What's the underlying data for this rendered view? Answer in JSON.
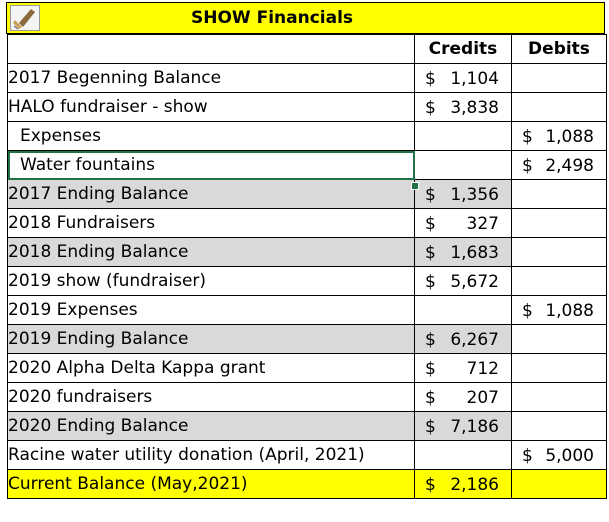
{
  "title": "SHOW Financials",
  "icon": "paintbrush-icon",
  "headers": {
    "credits": "Credits",
    "debits": "Debits"
  },
  "rows": [
    {
      "label": "2017 Begenning Balance",
      "credit": "1,104",
      "debit": ""
    },
    {
      "label": "HALO fundraiser - show",
      "credit": "3,838",
      "debit": ""
    },
    {
      "label": "Expenses",
      "credit": "",
      "debit": "1,088"
    },
    {
      "label": "Water fountains",
      "credit": "",
      "debit": "2,498"
    },
    {
      "label": "2017 Ending Balance",
      "credit": "1,356",
      "debit": ""
    },
    {
      "label": "2018 Fundraisers",
      "credit": "327",
      "debit": ""
    },
    {
      "label": "2018 Ending Balance",
      "credit": "1,683",
      "debit": ""
    },
    {
      "label": "2019 show (fundraiser)",
      "credit": "5,672",
      "debit": ""
    },
    {
      "label": "2019 Expenses",
      "credit": "",
      "debit": "1,088"
    },
    {
      "label": "2019 Ending Balance",
      "credit": "6,267",
      "debit": ""
    },
    {
      "label": "2020 Alpha Delta Kappa grant",
      "credit": "712",
      "debit": ""
    },
    {
      "label": "2020 fundraisers",
      "credit": "207",
      "debit": ""
    },
    {
      "label": "2020 Ending Balance",
      "credit": "7,186",
      "debit": ""
    },
    {
      "label": "Racine water utility donation (April, 2021)",
      "credit": "",
      "debit": "5,000"
    },
    {
      "label": "Current Balance (May,2021)",
      "credit": "2,186",
      "debit": ""
    }
  ],
  "currency": "$",
  "colors": {
    "header": "#ffff00",
    "subtotal": "#d9d9d9",
    "debit": "#ee0000",
    "selection": "#217346"
  }
}
